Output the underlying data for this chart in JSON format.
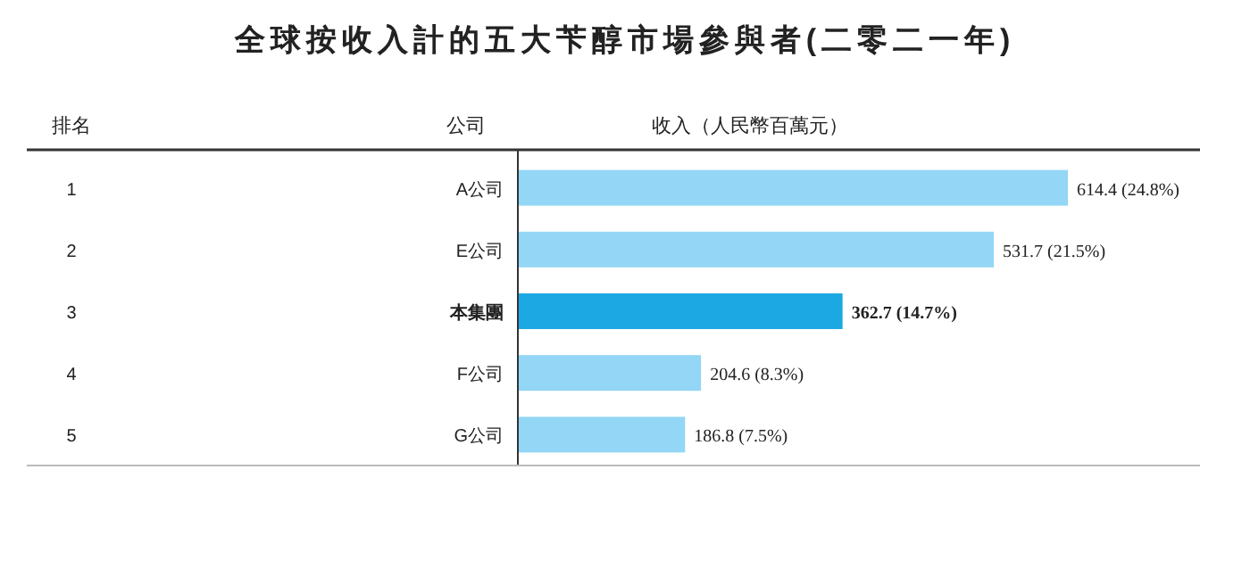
{
  "chart_data": {
    "type": "bar",
    "orientation": "horizontal",
    "title": "全球按收入計的五大苄醇市場參與者(二零二一年)",
    "annotations": [
      "排名",
      "公司",
      "收入（人民幣百萬元）",
      "1",
      "2",
      "3",
      "4",
      "5"
    ],
    "categories": [
      "A公司",
      "E公司",
      "本集團",
      "F公司",
      "G公司"
    ],
    "values": [
      614.4,
      531.7,
      362.7,
      204.6,
      186.8
    ],
    "value_labels": [
      "614.4 (24.8%)",
      "531.7 (21.5%)",
      "362.7 (14.7%)",
      "204.6 (8.3%)",
      "186.8 (7.5%)"
    ],
    "colors": [
      "#93d6f5",
      "#93d6f5",
      "#1ca8e2",
      "#93d6f5",
      "#93d6f5"
    ]
  }
}
